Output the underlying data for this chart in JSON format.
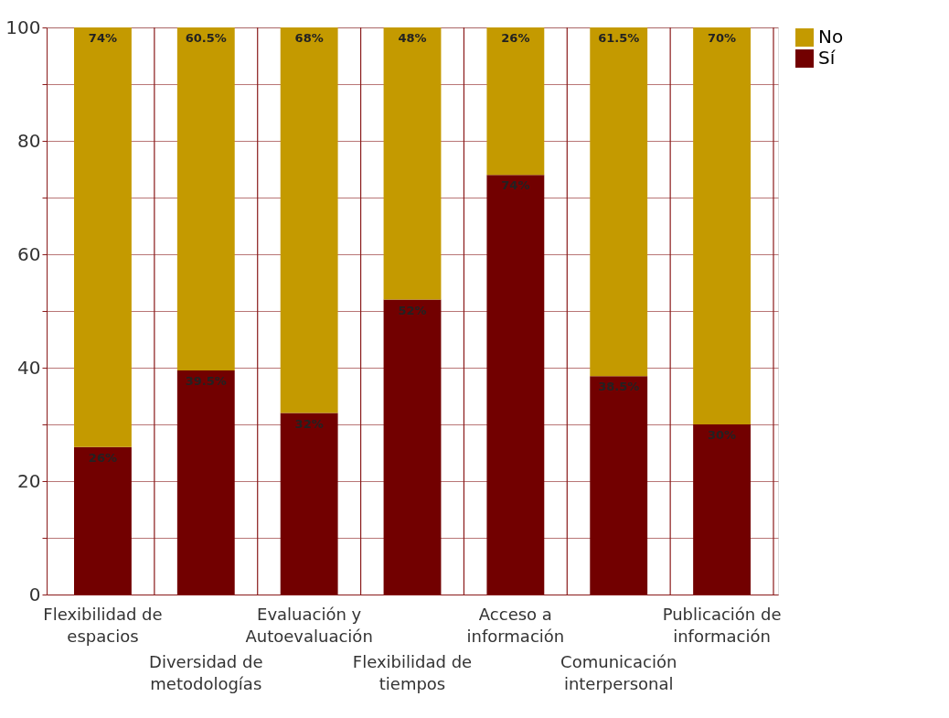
{
  "chart_data": {
    "type": "bar",
    "stacked": true,
    "categories": [
      "Flexibilidad de espacios",
      "Diversidad de metodologías",
      "Evaluación y Autoevaluación",
      "Flexibilidad de tiempos",
      "Acceso a información",
      "Comunicación interpersonal",
      "Publicación de información"
    ],
    "series": [
      {
        "name": "Sí",
        "color": "#720000",
        "values": [
          26,
          39.5,
          32,
          52,
          74,
          38.5,
          30
        ],
        "value_labels": [
          "26%",
          "39.5%",
          "32%",
          "52%",
          "74%",
          "38.5%",
          "30%"
        ]
      },
      {
        "name": "No",
        "color": "#c49a00",
        "values": [
          74,
          60.5,
          68,
          48,
          26,
          61.5,
          70
        ],
        "value_labels": [
          "74%",
          "60.5%",
          "68%",
          "48%",
          "26%",
          "61.5%",
          "70%"
        ]
      }
    ],
    "ylim": [
      0,
      100
    ],
    "yticks": [
      0,
      {
        "value": 10,
        "label": null
      },
      20,
      {
        "value": 30,
        "label": null
      },
      40,
      {
        "value": 50,
        "label": null
      },
      60,
      {
        "value": 70,
        "label": null
      },
      80,
      {
        "value": 90,
        "label": null
      },
      100
    ],
    "grid": true,
    "legend": "right"
  }
}
